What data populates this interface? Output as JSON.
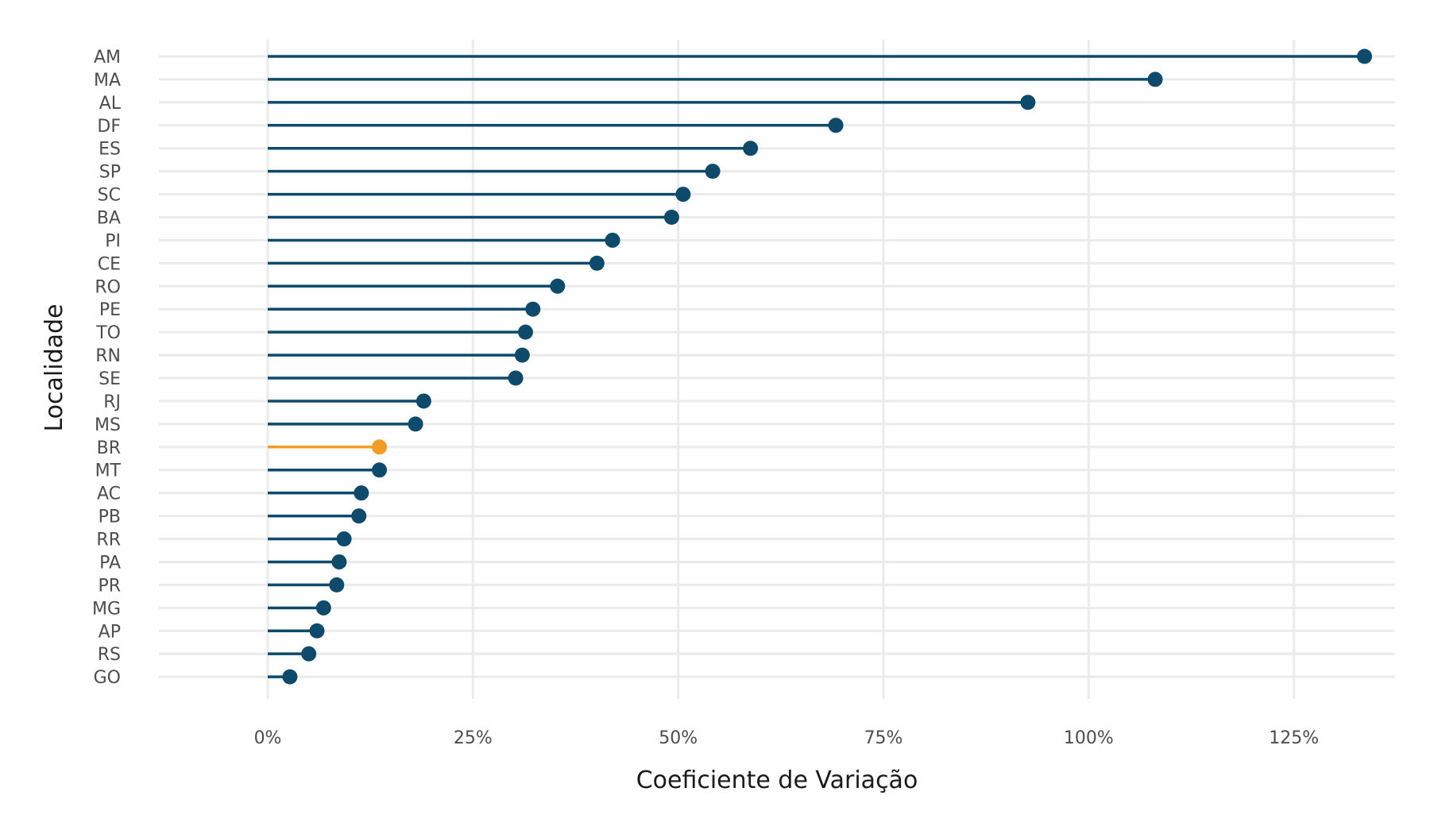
{
  "chart_data": {
    "type": "lollipop",
    "title": "",
    "xlabel": "Coeficiente de Variação",
    "ylabel": "Localidade",
    "xlim": [
      -0.1326,
      1.3732
    ],
    "x_ticks": [
      0,
      0.25,
      0.5,
      0.75,
      1.0,
      1.25
    ],
    "x_tick_labels": [
      "0%",
      "25%",
      "50%",
      "75%",
      "100%",
      "125%"
    ],
    "grid": true,
    "colors": {
      "default": "#0d4a6b",
      "highlight": "#f29c27",
      "grid": "#ebebeb"
    },
    "highlight": "BR",
    "categories": [
      "AM",
      "MA",
      "AL",
      "DF",
      "ES",
      "SP",
      "SC",
      "BA",
      "PI",
      "CE",
      "RO",
      "PE",
      "TO",
      "RN",
      "SE",
      "RJ",
      "MS",
      "BR",
      "MT",
      "AC",
      "PB",
      "RR",
      "PA",
      "PR",
      "MG",
      "AP",
      "RS",
      "GO"
    ],
    "values": [
      1.336,
      1.081,
      0.926,
      0.692,
      0.588,
      0.542,
      0.506,
      0.492,
      0.42,
      0.401,
      0.353,
      0.323,
      0.314,
      0.31,
      0.302,
      0.19,
      0.18,
      0.136,
      0.136,
      0.114,
      0.111,
      0.093,
      0.087,
      0.084,
      0.068,
      0.06,
      0.05,
      0.027
    ]
  }
}
